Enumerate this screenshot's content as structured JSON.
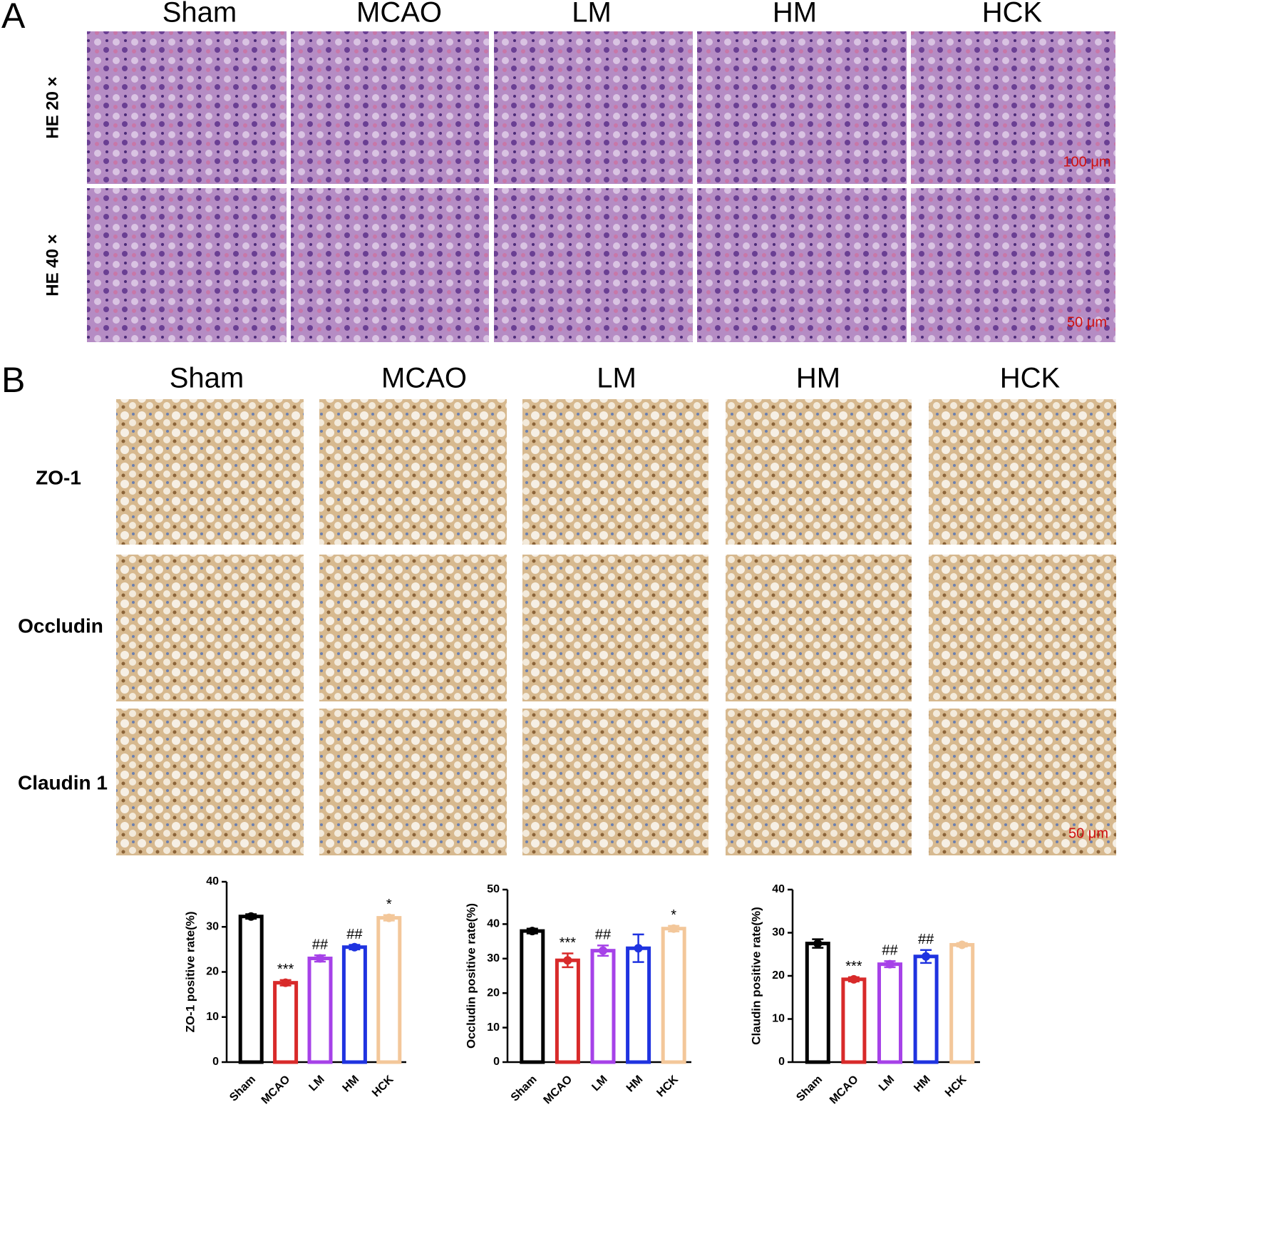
{
  "panel_a": {
    "label": "A",
    "columns": [
      "Sham",
      "MCAO",
      "LM",
      "HM",
      "HCK"
    ],
    "rows": [
      "HE 20 ×",
      "HE 40 ×"
    ],
    "scale_bars": [
      "100 μm",
      "50 μm"
    ]
  },
  "panel_b": {
    "label": "B",
    "columns": [
      "Sham",
      "MCAO",
      "LM",
      "HM",
      "HCK"
    ],
    "rows": [
      "ZO-1",
      "Occludin",
      "Claudin 1"
    ],
    "scale_bar": "50 μm"
  },
  "chart_data": [
    {
      "type": "bar",
      "y_label": "ZO-1 positive rate(%)",
      "categories": [
        "Sham",
        "MCAO",
        "LM",
        "HM",
        "HCK"
      ],
      "values": [
        32.3,
        17.6,
        23,
        25.5,
        32
      ],
      "errors": [
        0.5,
        0.6,
        0.7,
        0.5,
        0.6
      ],
      "colors": [
        "#000000",
        "#d82a2a",
        "#a642e8",
        "#1f33e0",
        "#f3c79a"
      ],
      "annotations": [
        null,
        "***",
        "##",
        "##",
        "*"
      ],
      "ylim": [
        0,
        40
      ],
      "yticks": [
        0,
        10,
        20,
        30,
        40
      ]
    },
    {
      "type": "bar",
      "y_label": "Occludin positive rate(%)",
      "categories": [
        "Sham",
        "MCAO",
        "LM",
        "HM",
        "HCK"
      ],
      "values": [
        38,
        29.5,
        32.3,
        33,
        38.7
      ],
      "errors": [
        0.7,
        2,
        1.5,
        4,
        0.8
      ],
      "colors": [
        "#000000",
        "#d82a2a",
        "#a642e8",
        "#1f33e0",
        "#f3c79a"
      ],
      "annotations": [
        null,
        "***",
        "##",
        null,
        "*"
      ],
      "ylim": [
        0,
        50
      ],
      "yticks": [
        0,
        10,
        20,
        30,
        40,
        50
      ]
    },
    {
      "type": "bar",
      "y_label": "Claudin positive rate(%)",
      "categories": [
        "Sham",
        "MCAO",
        "LM",
        "HM",
        "HCK"
      ],
      "values": [
        27.5,
        19.2,
        22.7,
        24.5,
        27.2
      ],
      "errors": [
        1,
        0.5,
        0.7,
        1.5,
        0.4
      ],
      "colors": [
        "#000000",
        "#d82a2a",
        "#a642e8",
        "#1f33e0",
        "#f3c79a"
      ],
      "annotations": [
        null,
        "***",
        "##",
        "##",
        null
      ],
      "ylim": [
        0,
        40
      ],
      "yticks": [
        0,
        10,
        20,
        30,
        40
      ]
    }
  ]
}
